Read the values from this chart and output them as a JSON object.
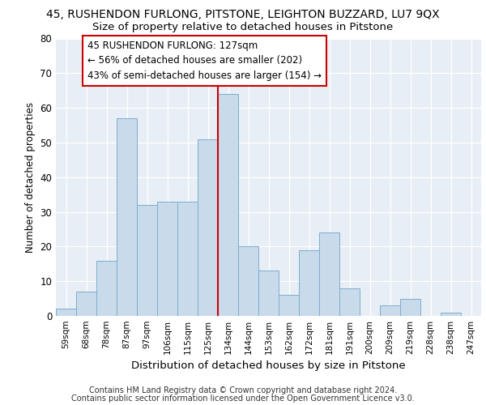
{
  "title1": "45, RUSHENDON FURLONG, PITSTONE, LEIGHTON BUZZARD, LU7 9QX",
  "title2": "Size of property relative to detached houses in Pitstone",
  "xlabel": "Distribution of detached houses by size in Pitstone",
  "ylabel": "Number of detached properties",
  "categories": [
    "59sqm",
    "68sqm",
    "78sqm",
    "87sqm",
    "97sqm",
    "106sqm",
    "115sqm",
    "125sqm",
    "134sqm",
    "144sqm",
    "153sqm",
    "162sqm",
    "172sqm",
    "181sqm",
    "191sqm",
    "200sqm",
    "209sqm",
    "219sqm",
    "228sqm",
    "238sqm",
    "247sqm"
  ],
  "values": [
    2,
    7,
    16,
    57,
    32,
    33,
    33,
    51,
    64,
    20,
    13,
    6,
    19,
    24,
    8,
    0,
    3,
    5,
    0,
    1,
    0
  ],
  "bar_color": "#c9daea",
  "bar_edge_color": "#7baecf",
  "vline_index": 7.5,
  "vline_color": "#cc0000",
  "annotation_line1": "45 RUSHENDON FURLONG: 127sqm",
  "annotation_line2": "← 56% of detached houses are smaller (202)",
  "annotation_line3": "43% of semi-detached houses are larger (154) →",
  "annotation_box_facecolor": "#ffffff",
  "annotation_box_edgecolor": "#cc0000",
  "ylim_max": 80,
  "yticks": [
    0,
    10,
    20,
    30,
    40,
    50,
    60,
    70,
    80
  ],
  "plot_bg_color": "#e8eef5",
  "grid_color": "#ffffff",
  "footer1": "Contains HM Land Registry data © Crown copyright and database right 2024.",
  "footer2": "Contains public sector information licensed under the Open Government Licence v3.0."
}
